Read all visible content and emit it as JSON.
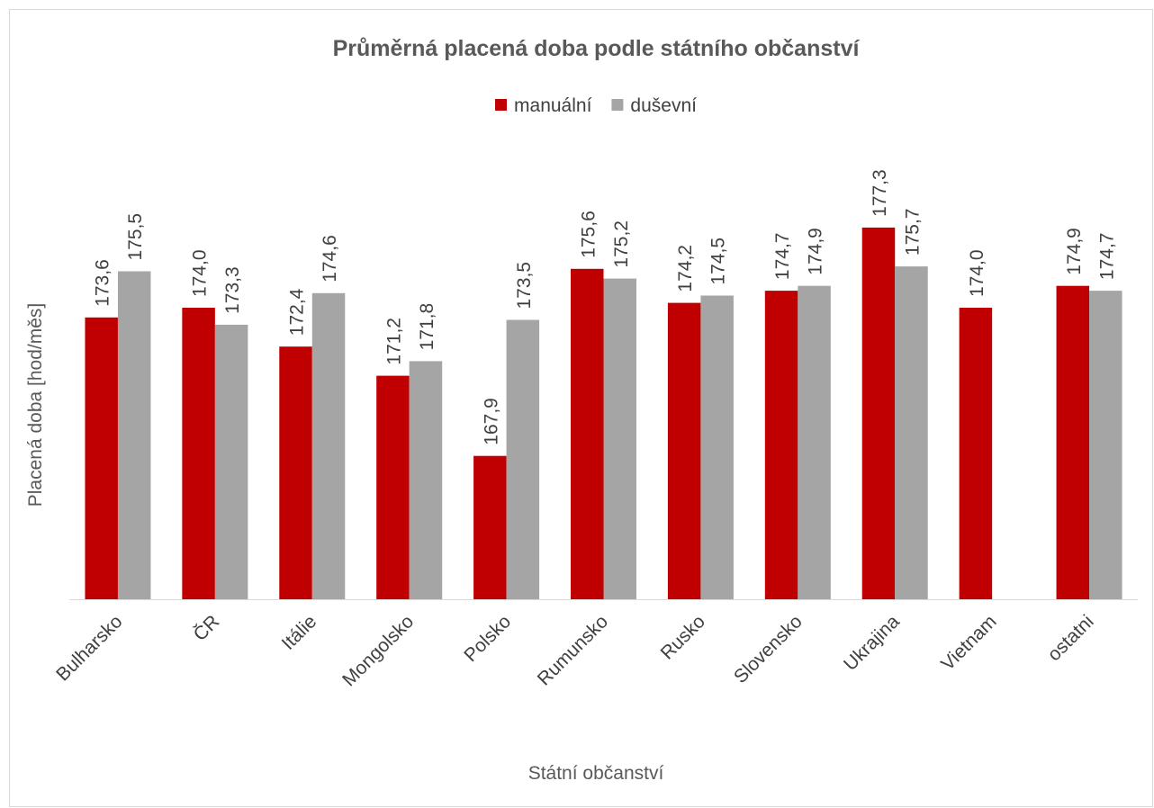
{
  "chart_data": {
    "type": "bar",
    "title": "Průměrná placená doba podle státního občanství",
    "x_label": "Státní občanství",
    "y_label": "Placená doba [hod/měs]",
    "categories": [
      "Bulharsko",
      "ČR",
      "Itálie",
      "Mongolsko",
      "Polsko",
      "Rumunsko",
      "Rusko",
      "Slovensko",
      "Ukrajina",
      "Vietnam",
      "ostatni"
    ],
    "series": [
      {
        "name": "manuální",
        "color": "#c00000",
        "values": [
          173.6,
          174.0,
          172.4,
          171.2,
          167.9,
          175.6,
          174.2,
          174.7,
          177.3,
          174.0,
          174.9
        ],
        "value_labels": [
          "173,6",
          "174,0",
          "172,4",
          "171,2",
          "167,9",
          "175,6",
          "174,2",
          "174,7",
          "177,3",
          "174,0",
          "174,9"
        ]
      },
      {
        "name": "duševní",
        "color": "#a5a5a5",
        "values": [
          175.5,
          173.3,
          174.6,
          171.8,
          173.5,
          175.2,
          174.5,
          174.9,
          175.7,
          null,
          174.7
        ],
        "value_labels": [
          "175,5",
          "173,3",
          "174,6",
          "171,8",
          "173,5",
          "175,2",
          "174,5",
          "174,9",
          "175,7",
          null,
          "174,7"
        ]
      }
    ],
    "ylim": [
      162,
      180
    ],
    "legend": "top"
  }
}
